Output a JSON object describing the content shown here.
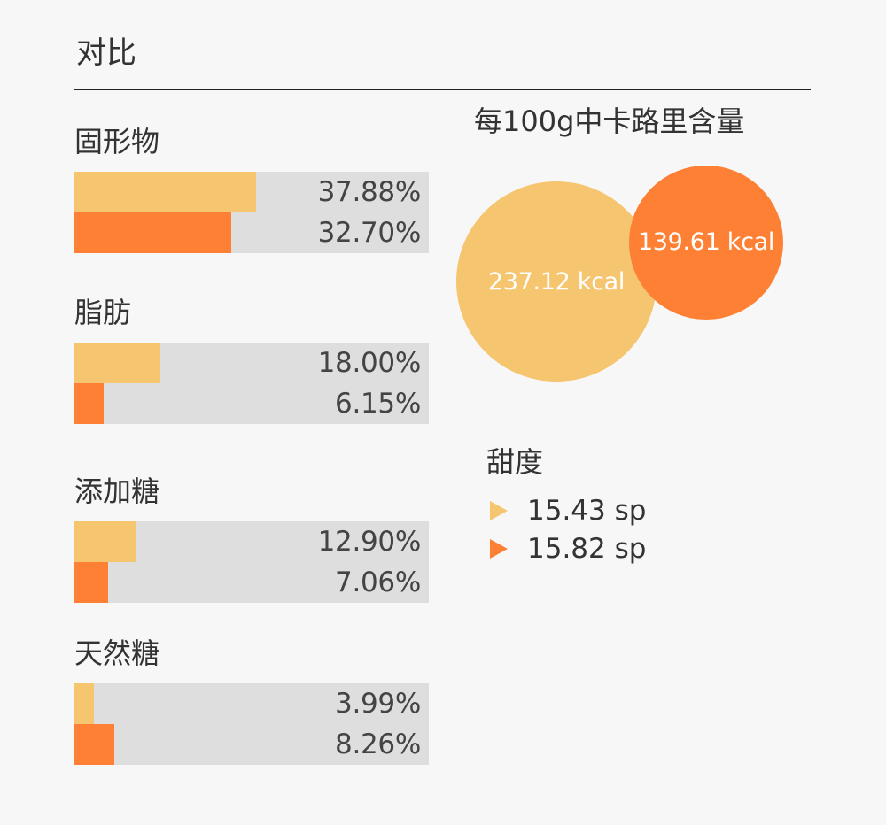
{
  "page": {
    "title": "对比"
  },
  "colors": {
    "series_a": "#f6c56f",
    "series_b": "#fd8034",
    "track": "#dedede"
  },
  "chart_data": [
    {
      "type": "bar",
      "orientation": "horizontal",
      "value_range": [
        0,
        100
      ],
      "groups": [
        {
          "label": "固形物",
          "values": [
            37.88,
            32.7
          ],
          "value_labels": [
            "37.88%",
            "32.70%"
          ]
        },
        {
          "label": "脂肪",
          "values": [
            18.0,
            6.15
          ],
          "value_labels": [
            "18.00%",
            "6.15%"
          ]
        },
        {
          "label": "添加糖",
          "values": [
            12.9,
            7.06
          ],
          "value_labels": [
            "12.90%",
            "7.06%"
          ]
        },
        {
          "label": "天然糖",
          "values": [
            3.99,
            8.26
          ],
          "value_labels": [
            "3.99%",
            "8.26%"
          ]
        }
      ]
    },
    {
      "type": "bubble",
      "title": "每100g中卡路里含量",
      "values": [
        237.12,
        139.61
      ],
      "value_labels": [
        "237.12 kcal",
        "139.61 kcal"
      ]
    }
  ],
  "sweetness": {
    "title": "甜度",
    "items": [
      {
        "value": 15.43,
        "label": "15.43 sp"
      },
      {
        "value": 15.82,
        "label": "15.82 sp"
      }
    ]
  }
}
